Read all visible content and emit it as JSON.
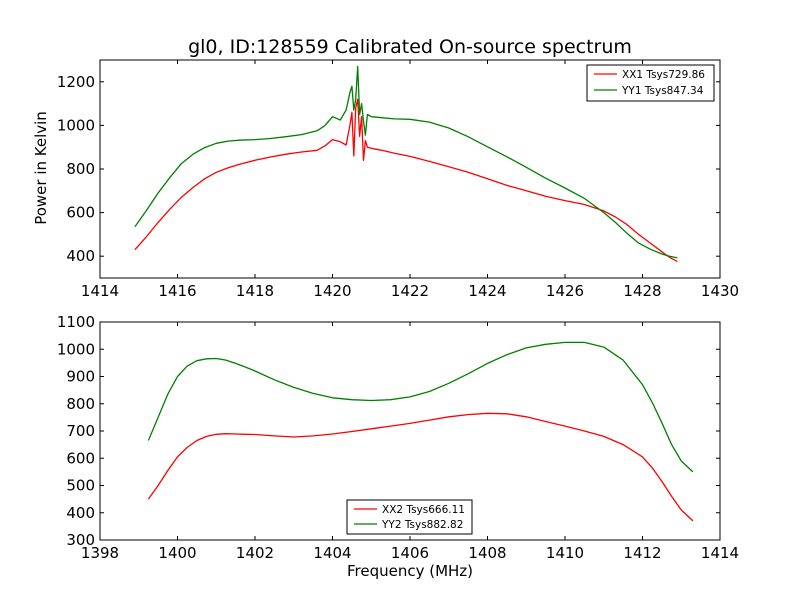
{
  "chart_data": [
    {
      "type": "line",
      "title": "gl0, ID:128559 Calibrated On-source spectrum",
      "xlabel": "",
      "ylabel": "Power in Kelvin",
      "xlim": [
        1414,
        1430
      ],
      "ylim": [
        300,
        1300
      ],
      "xticks": [
        1414,
        1416,
        1418,
        1420,
        1422,
        1424,
        1426,
        1428,
        1430
      ],
      "yticks": [
        400,
        600,
        800,
        1000,
        1200
      ],
      "grid": false,
      "legend_position": "top-right",
      "series": [
        {
          "name": "XX1 Tsys729.86",
          "color": "#ff0000",
          "x": [
            1414.9,
            1415.2,
            1415.5,
            1415.8,
            1416.1,
            1416.4,
            1416.7,
            1417.0,
            1417.3,
            1417.6,
            1418.0,
            1418.4,
            1418.8,
            1419.2,
            1419.6,
            1419.8,
            1420.0,
            1420.2,
            1420.35,
            1420.45,
            1420.5,
            1420.55,
            1420.6,
            1420.65,
            1420.7,
            1420.75,
            1420.8,
            1420.85,
            1420.9,
            1421.0,
            1421.3,
            1421.6,
            1422.0,
            1422.5,
            1423.0,
            1423.5,
            1424.0,
            1424.5,
            1425.0,
            1425.5,
            1426.0,
            1426.5,
            1427.0,
            1427.3,
            1427.6,
            1427.9,
            1428.2,
            1428.5,
            1428.7,
            1428.9
          ],
          "y": [
            430,
            490,
            555,
            615,
            670,
            715,
            755,
            785,
            805,
            822,
            840,
            855,
            868,
            878,
            886,
            905,
            935,
            925,
            910,
            1000,
            1060,
            860,
            1080,
            1120,
            950,
            1040,
            840,
            930,
            900,
            895,
            885,
            872,
            858,
            835,
            810,
            785,
            755,
            725,
            700,
            675,
            655,
            637,
            608,
            580,
            545,
            500,
            460,
            420,
            395,
            375
          ]
        },
        {
          "name": "YY1 Tsys847.34",
          "color": "#008000",
          "x": [
            1414.9,
            1415.2,
            1415.5,
            1415.8,
            1416.1,
            1416.4,
            1416.7,
            1417.0,
            1417.3,
            1417.6,
            1418.0,
            1418.4,
            1418.8,
            1419.2,
            1419.6,
            1419.8,
            1420.0,
            1420.2,
            1420.35,
            1420.45,
            1420.5,
            1420.55,
            1420.6,
            1420.65,
            1420.7,
            1420.75,
            1420.8,
            1420.85,
            1420.9,
            1421.0,
            1421.3,
            1421.6,
            1422.0,
            1422.5,
            1423.0,
            1423.5,
            1424.0,
            1424.5,
            1425.0,
            1425.5,
            1426.0,
            1426.5,
            1427.0,
            1427.3,
            1427.6,
            1427.9,
            1428.2,
            1428.5,
            1428.7,
            1428.9
          ],
          "y": [
            535,
            610,
            690,
            760,
            825,
            868,
            898,
            918,
            928,
            932,
            935,
            940,
            948,
            958,
            975,
            998,
            1040,
            1025,
            1070,
            1150,
            1180,
            1070,
            1120,
            1270,
            1050,
            1100,
            1020,
            955,
            1050,
            1040,
            1035,
            1030,
            1028,
            1015,
            988,
            948,
            902,
            856,
            808,
            758,
            713,
            665,
            600,
            555,
            505,
            460,
            432,
            410,
            400,
            392
          ]
        }
      ]
    },
    {
      "type": "line",
      "title": "",
      "xlabel": "Frequency (MHz)",
      "ylabel": "",
      "xlim": [
        1398,
        1414
      ],
      "ylim": [
        300,
        1100
      ],
      "xticks": [
        1398,
        1400,
        1402,
        1404,
        1406,
        1408,
        1410,
        1412,
        1414
      ],
      "yticks": [
        300,
        400,
        500,
        600,
        700,
        800,
        900,
        1000,
        1100
      ],
      "grid": false,
      "legend_position": "bottom-center",
      "series": [
        {
          "name": "XX2 Tsys666.11",
          "color": "#ff0000",
          "x": [
            1399.25,
            1399.5,
            1399.75,
            1400.0,
            1400.25,
            1400.5,
            1400.75,
            1401.0,
            1401.25,
            1401.5,
            1401.75,
            1402.0,
            1402.5,
            1403.0,
            1403.5,
            1404.0,
            1404.5,
            1405.0,
            1405.5,
            1406.0,
            1406.5,
            1407.0,
            1407.5,
            1408.0,
            1408.5,
            1409.0,
            1409.5,
            1410.0,
            1410.5,
            1411.0,
            1411.5,
            1412.0,
            1412.25,
            1412.5,
            1412.75,
            1413.0,
            1413.3
          ],
          "y": [
            450,
            500,
            555,
            605,
            640,
            665,
            680,
            688,
            690,
            689,
            688,
            687,
            682,
            678,
            682,
            689,
            698,
            708,
            718,
            728,
            740,
            752,
            760,
            765,
            763,
            752,
            735,
            718,
            700,
            680,
            650,
            605,
            565,
            515,
            460,
            410,
            370
          ]
        },
        {
          "name": "YY2 Tsys882.82",
          "color": "#008000",
          "x": [
            1399.25,
            1399.5,
            1399.75,
            1400.0,
            1400.25,
            1400.5,
            1400.75,
            1401.0,
            1401.25,
            1401.5,
            1401.75,
            1402.0,
            1402.5,
            1403.0,
            1403.5,
            1404.0,
            1404.5,
            1405.0,
            1405.5,
            1406.0,
            1406.5,
            1407.0,
            1407.5,
            1408.0,
            1408.5,
            1409.0,
            1409.5,
            1410.0,
            1410.5,
            1411.0,
            1411.5,
            1412.0,
            1412.25,
            1412.5,
            1412.75,
            1413.0,
            1413.3
          ],
          "y": [
            665,
            750,
            835,
            900,
            938,
            958,
            965,
            966,
            960,
            948,
            935,
            920,
            888,
            860,
            838,
            822,
            815,
            812,
            815,
            825,
            845,
            875,
            910,
            948,
            980,
            1005,
            1018,
            1025,
            1025,
            1008,
            960,
            870,
            805,
            730,
            650,
            590,
            550
          ]
        }
      ]
    }
  ]
}
